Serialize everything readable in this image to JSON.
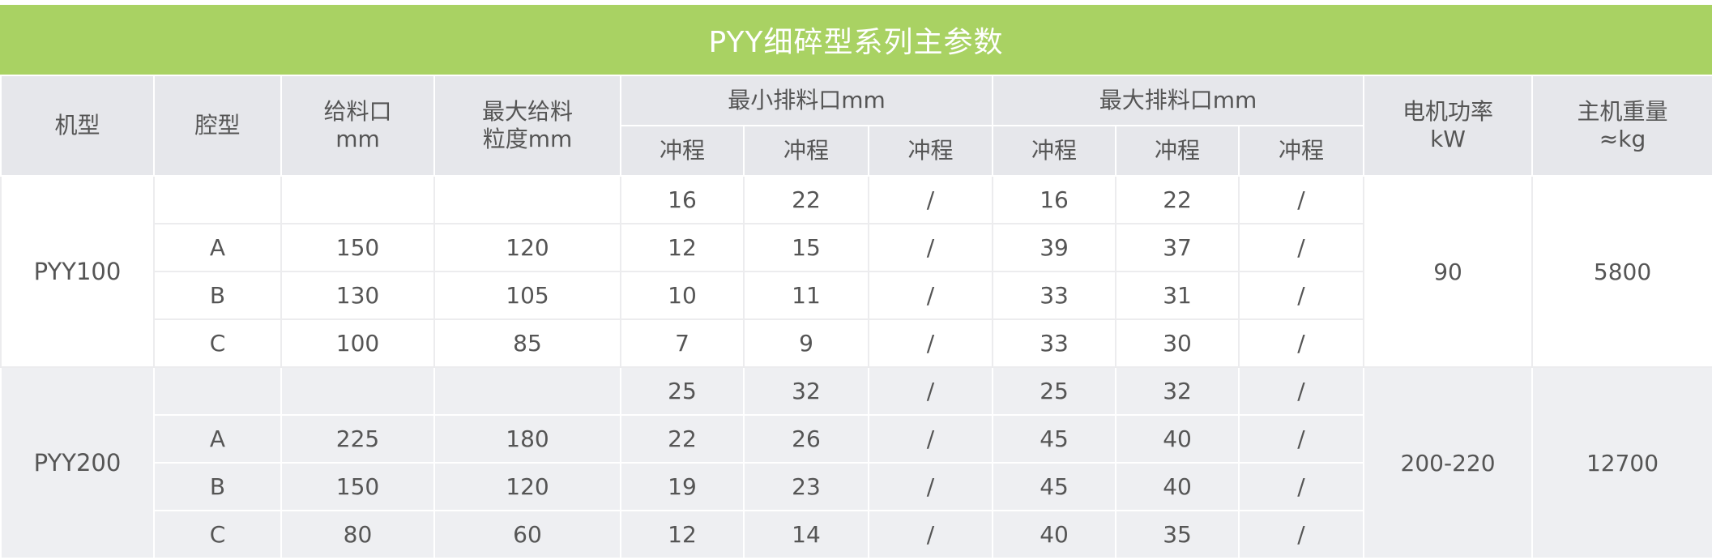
{
  "title": "PYY细碎型系列主参数",
  "colors": {
    "title_bg": "#a9d263",
    "header_bg": "#e6e7eb",
    "group2_bg": "#eeeff2"
  },
  "headers": {
    "model": "机型",
    "cavity": "腔型",
    "feed_opening": [
      "给料口",
      "mm"
    ],
    "max_feed_size": [
      "最大给料",
      "粒度mm"
    ],
    "min_discharge": "最小排料口mm",
    "max_discharge": "最大排料口mm",
    "stroke": [
      "冲程",
      "冲程",
      "冲程",
      "冲程",
      "冲程",
      "冲程"
    ],
    "motor_power": [
      "电机功率",
      "kW"
    ],
    "weight": [
      "主机重量",
      "≈kg"
    ]
  },
  "groups": [
    {
      "model": "PYY100",
      "power": "90",
      "weight": "5800",
      "rows": [
        {
          "cavity": "",
          "feed": "",
          "max_feed": "",
          "min": [
            "16",
            "22",
            "/"
          ],
          "max": [
            "16",
            "22",
            "/"
          ]
        },
        {
          "cavity": "A",
          "feed": "150",
          "max_feed": "120",
          "min": [
            "12",
            "15",
            "/"
          ],
          "max": [
            "39",
            "37",
            "/"
          ]
        },
        {
          "cavity": "B",
          "feed": "130",
          "max_feed": "105",
          "min": [
            "10",
            "11",
            "/"
          ],
          "max": [
            "33",
            "31",
            "/"
          ]
        },
        {
          "cavity": "C",
          "feed": "100",
          "max_feed": "85",
          "min": [
            "7",
            "9",
            "/"
          ],
          "max": [
            "33",
            "30",
            "/"
          ]
        }
      ]
    },
    {
      "model": "PYY200",
      "power": "200-220",
      "weight": "12700",
      "rows": [
        {
          "cavity": "",
          "feed": "",
          "max_feed": "",
          "min": [
            "25",
            "32",
            "/"
          ],
          "max": [
            "25",
            "32",
            "/"
          ]
        },
        {
          "cavity": "A",
          "feed": "225",
          "max_feed": "180",
          "min": [
            "22",
            "26",
            "/"
          ],
          "max": [
            "45",
            "40",
            "/"
          ]
        },
        {
          "cavity": "B",
          "feed": "150",
          "max_feed": "120",
          "min": [
            "19",
            "23",
            "/"
          ],
          "max": [
            "45",
            "40",
            "/"
          ]
        },
        {
          "cavity": "C",
          "feed": "80",
          "max_feed": "60",
          "min": [
            "12",
            "14",
            "/"
          ],
          "max": [
            "40",
            "35",
            "/"
          ]
        }
      ]
    }
  ]
}
